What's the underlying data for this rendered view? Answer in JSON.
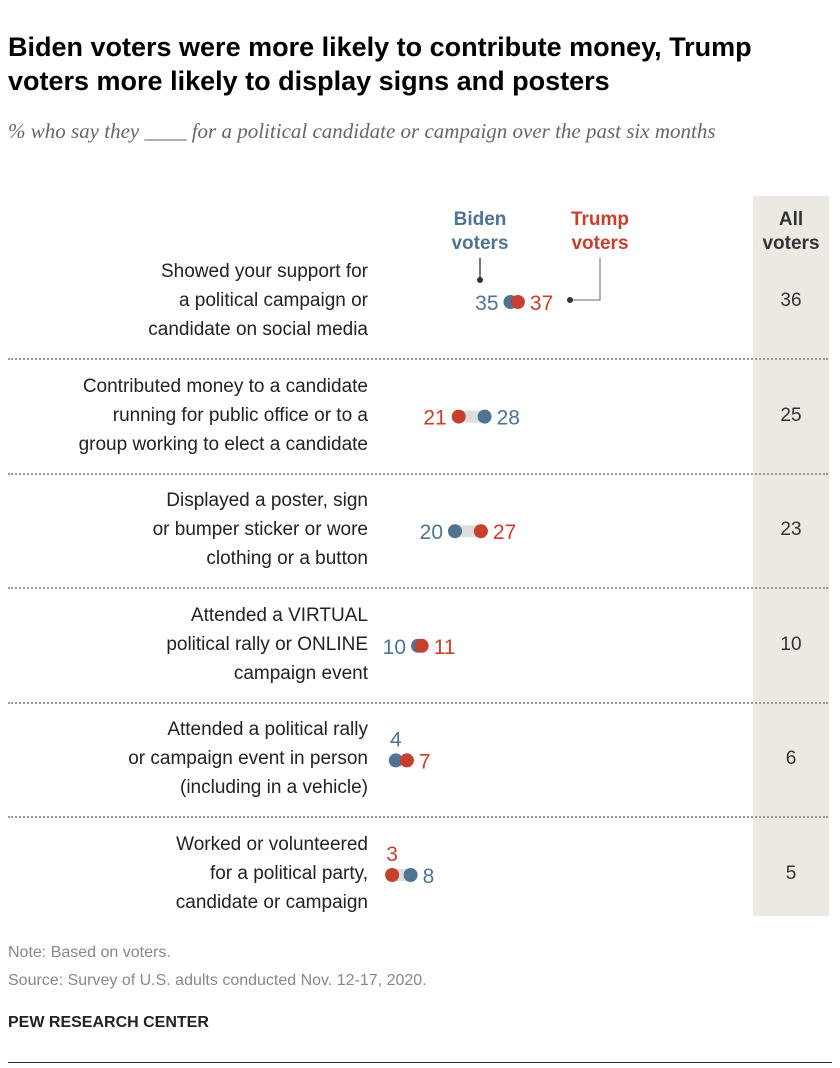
{
  "title": "Biden voters were more likely to contribute money, Trump voters more likely to display signs and posters",
  "subtitle": "% who say they ____ for a political candidate or campaign over the past six months",
  "colors": {
    "biden": "#4f7391",
    "trump": "#c7402f",
    "all_col_bg": "#ebe9e2"
  },
  "chart_data": {
    "type": "dot",
    "legend": {
      "biden": "Biden voters",
      "trump": "Trump voters",
      "all": "All voters"
    },
    "categories": [
      "Showed your support for a political campaign or candidate on social media",
      "Contributed money to a candidate running  for public office or to a group working to elect a candidate",
      "Displayed a poster, sign or bumper sticker or wore clothing or a button",
      "Attended a VIRTUAL political rally or ONLINE campaign event",
      "Attended a political rally or campaign event in person (including in a vehicle)",
      "Worked or volunteered for a political party, candidate or campaign"
    ],
    "series": [
      {
        "name": "Biden voters",
        "values": [
          35,
          28,
          20,
          10,
          4,
          8
        ]
      },
      {
        "name": "Trump voters",
        "values": [
          37,
          21,
          27,
          11,
          7,
          3
        ]
      },
      {
        "name": "All voters",
        "values": [
          36,
          25,
          23,
          10,
          6,
          5
        ]
      }
    ]
  },
  "row_label_lines": [
    [
      "Showed your support for",
      "a political campaign or",
      "candidate on social media"
    ],
    [
      "Contributed money to a candidate",
      "running  for public office or to a",
      "group working to elect a candidate"
    ],
    [
      "Displayed a poster, sign",
      "or bumper sticker or wore",
      "clothing or a button"
    ],
    [
      "Attended a VIRTUAL",
      "political rally or ONLINE",
      "campaign event"
    ],
    [
      "Attended a political rally",
      "or campaign event in person",
      "(including in a vehicle)"
    ],
    [
      "Worked or volunteered",
      "for a political party,",
      "candidate or campaign"
    ]
  ],
  "legend_lines": {
    "biden": [
      "Biden",
      "voters"
    ],
    "trump": [
      "Trump",
      "voters"
    ],
    "all": [
      "All",
      "voters"
    ]
  },
  "note": "Note: Based on voters.",
  "source": "Source: Survey of U.S. adults conducted Nov. 12-17, 2020.",
  "brand": "PEW RESEARCH CENTER"
}
